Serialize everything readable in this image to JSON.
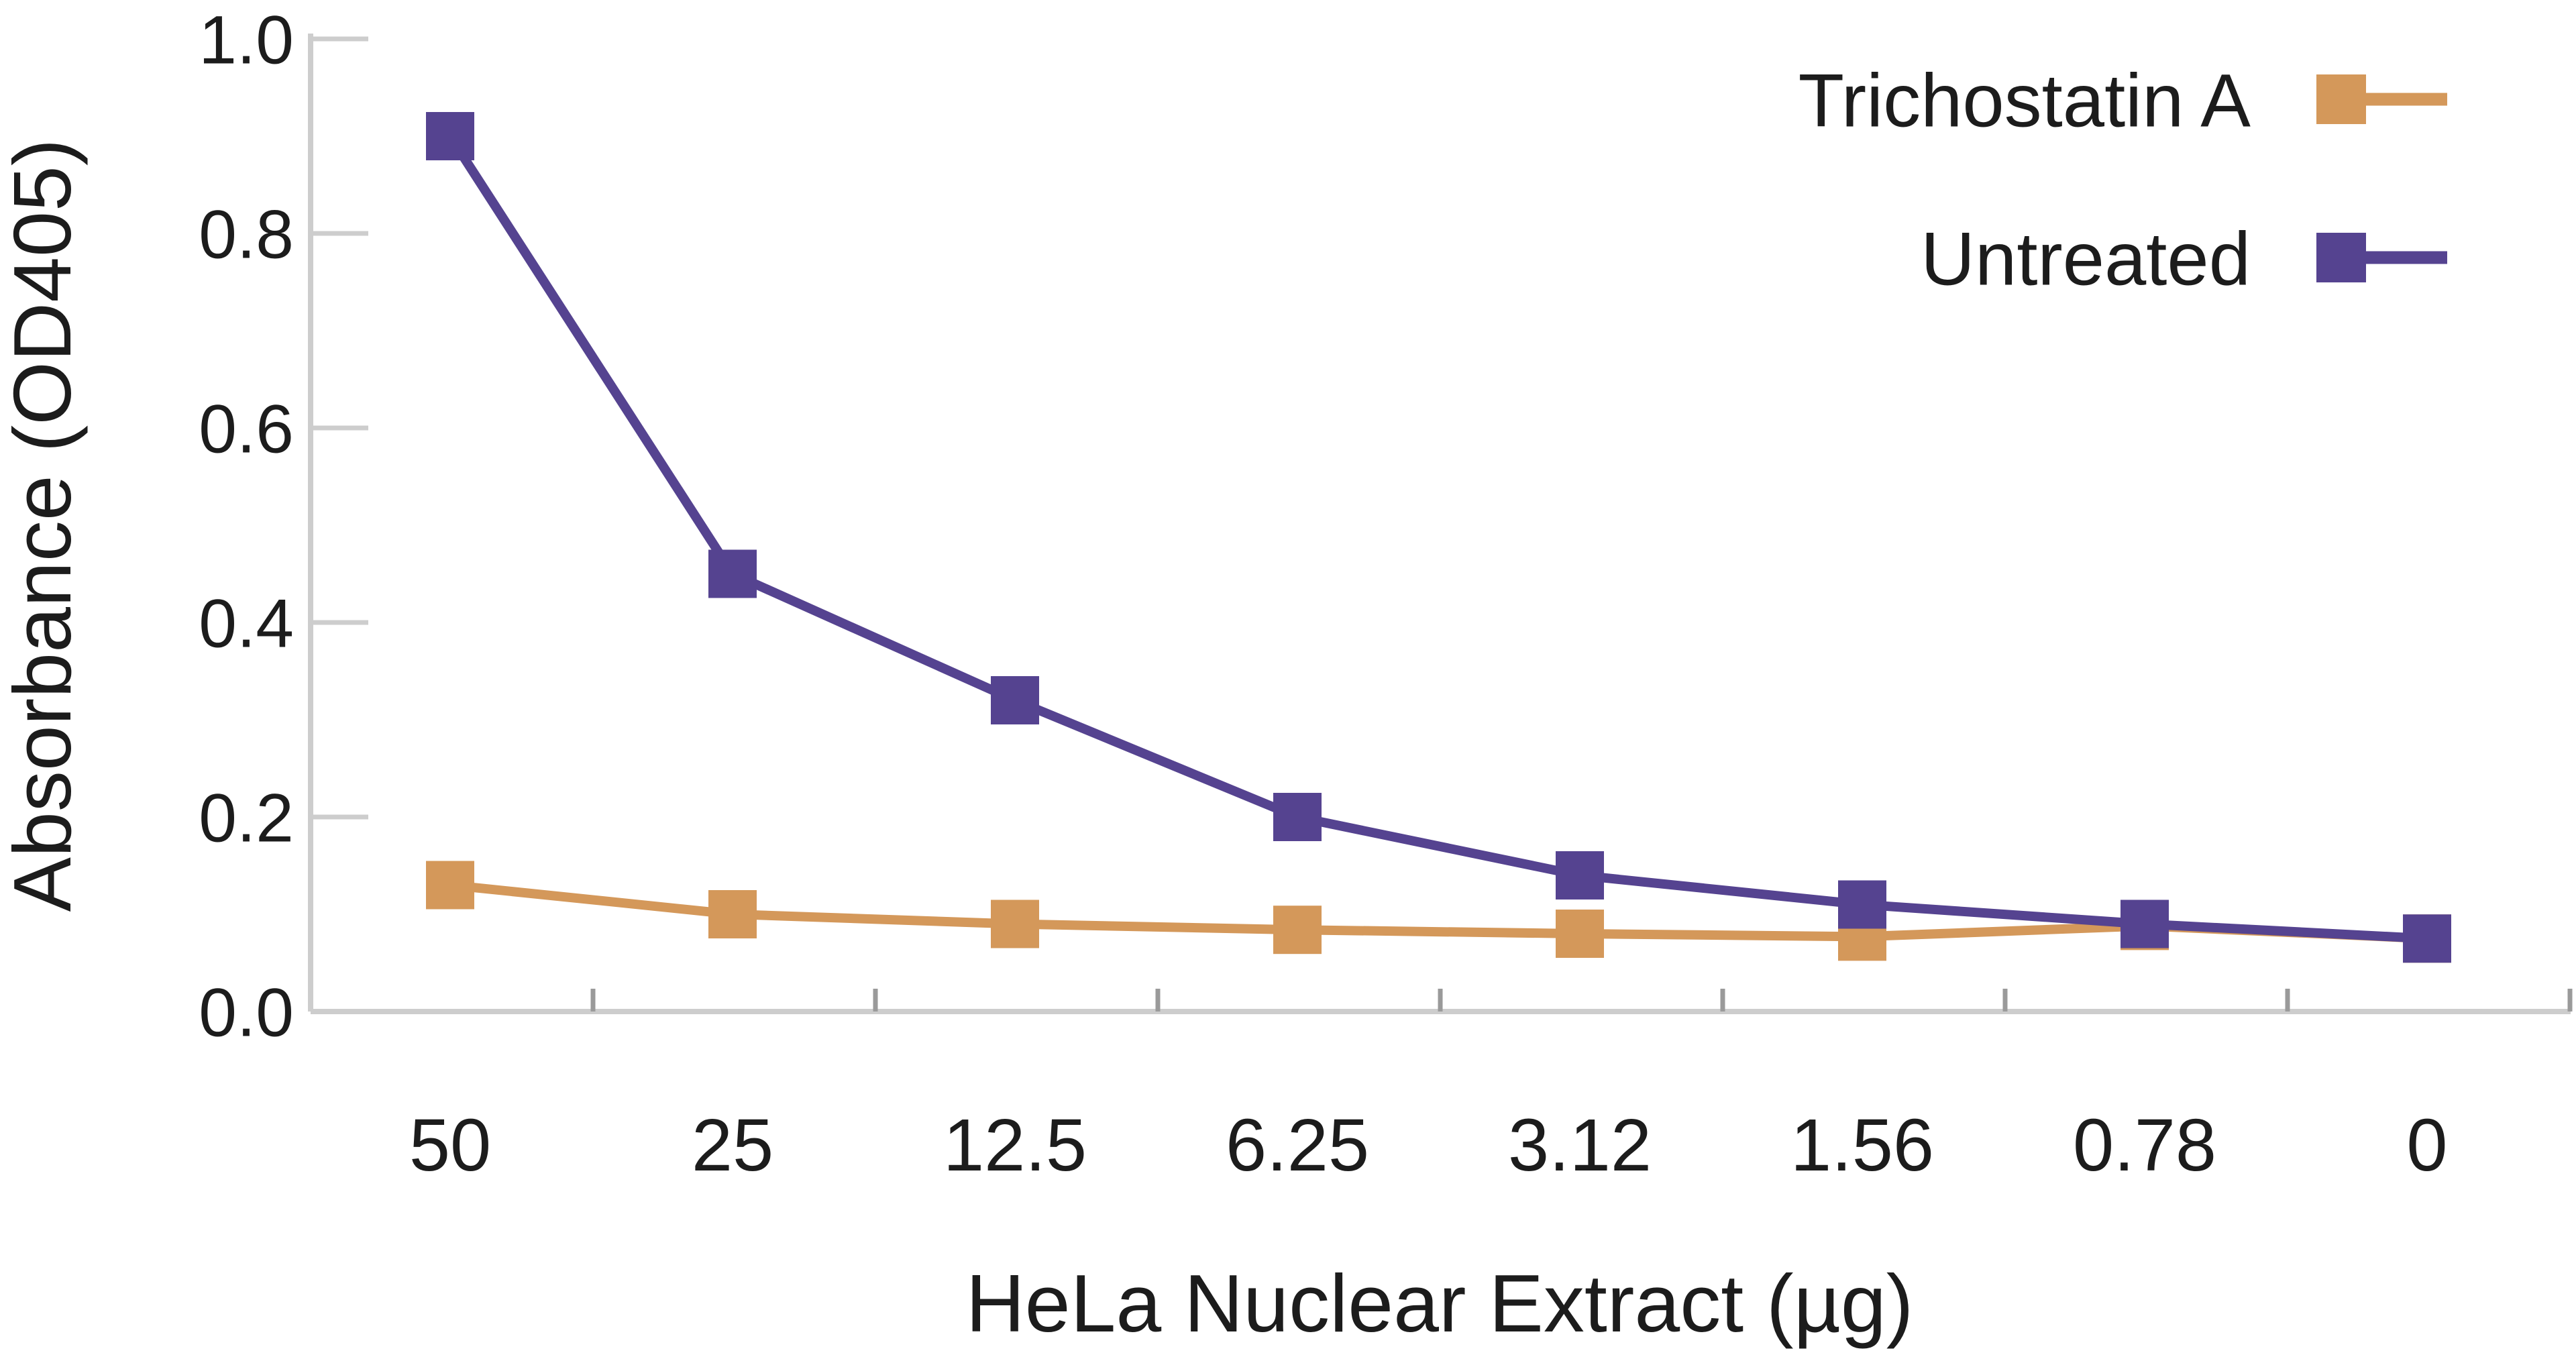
{
  "chart_data": {
    "type": "line",
    "title": "",
    "xlabel": "HeLa Nuclear Extract (µg)",
    "ylabel": "Absorbance (OD405)",
    "categories": [
      "50",
      "25",
      "12.5",
      "6.25",
      "3.12",
      "1.56",
      "0.78",
      "0"
    ],
    "y_ticks": [
      "1.0",
      "0.8",
      "0.6",
      "0.4",
      "0.2",
      "0.0"
    ],
    "y_tick_values": [
      1.0,
      0.8,
      0.6,
      0.4,
      0.2,
      0.0
    ],
    "ylim": [
      0.0,
      1.0
    ],
    "grid": false,
    "legend_position": "top-right",
    "marker_shape": "square",
    "series": [
      {
        "name": "Trichostatin A",
        "color": "#D4985A",
        "values": [
          0.13,
          0.1,
          0.09,
          0.084,
          0.08,
          0.077,
          0.088,
          0.075
        ]
      },
      {
        "name": "Untreated",
        "color": "#554390",
        "values": [
          0.9,
          0.45,
          0.32,
          0.2,
          0.14,
          0.11,
          0.09,
          0.075
        ]
      }
    ]
  },
  "colors": {
    "background": "#ffffff",
    "text": "#1c1c1c",
    "axis_line": "#cdcdcd",
    "y_tick": "#cdcdcd",
    "x_tick": "#9a9a9a",
    "trichostatin_a": "#D4985A",
    "untreated": "#554390"
  }
}
